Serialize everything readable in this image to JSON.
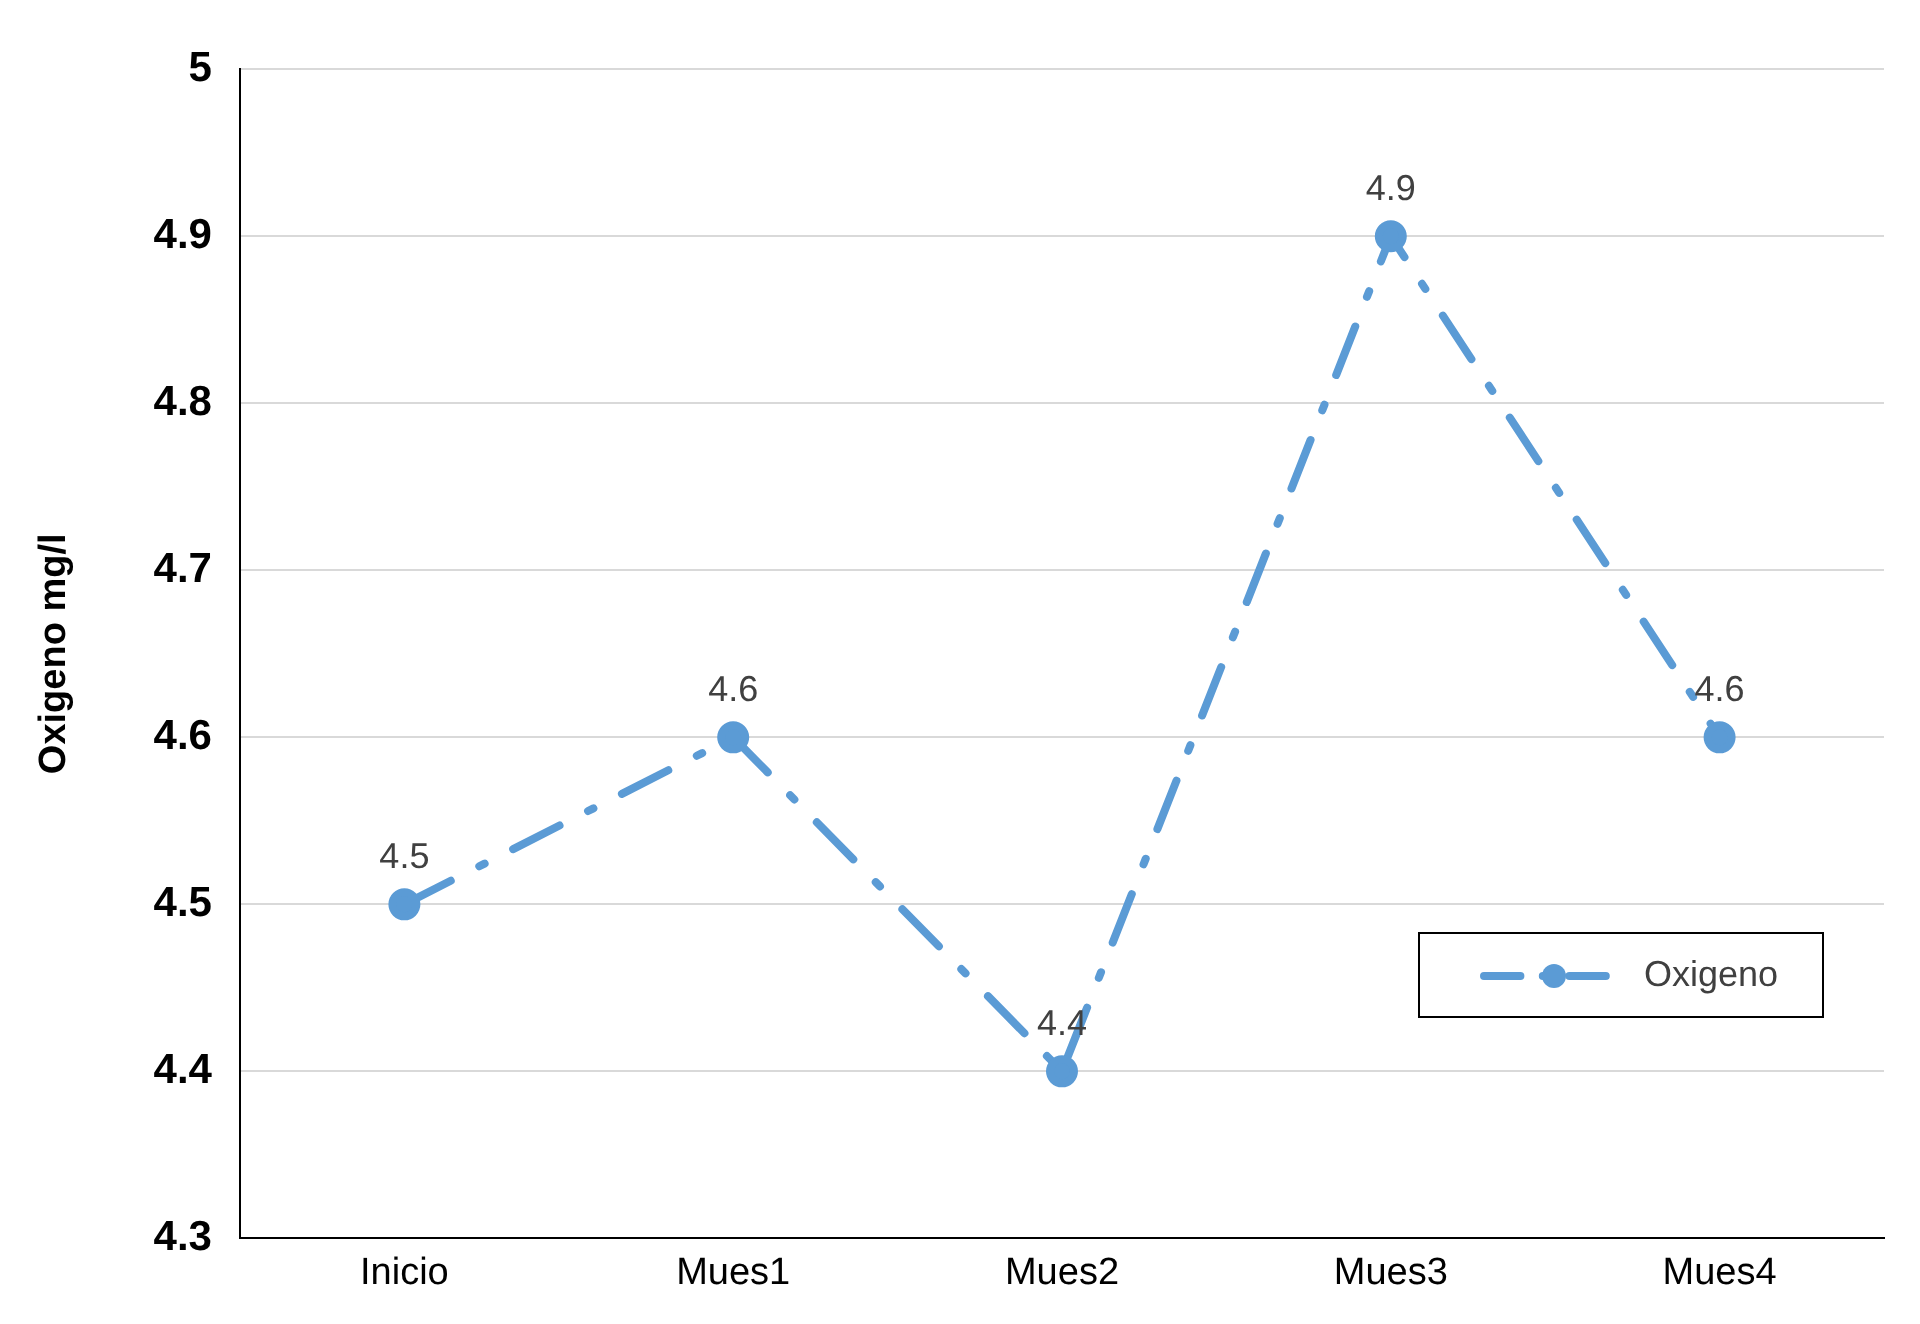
{
  "chart_data": {
    "type": "line",
    "ylabel": "Oxigeno mg/l",
    "categories": [
      "Inicio",
      "Mues1",
      "Mues2",
      "Mues3",
      "Mues4"
    ],
    "series": [
      {
        "name": "Oxigeno",
        "color": "#5b9bd5",
        "values": [
          4.5,
          4.6,
          4.4,
          4.9,
          4.6
        ]
      }
    ],
    "ylim": [
      4.3,
      5
    ],
    "yticks": [
      4.3,
      4.4,
      4.5,
      4.6,
      4.7,
      4.8,
      4.9,
      5
    ],
    "grid": "y",
    "legend": "bottom right",
    "marker": "circle",
    "line_style": "dashed",
    "data_labels": true
  }
}
